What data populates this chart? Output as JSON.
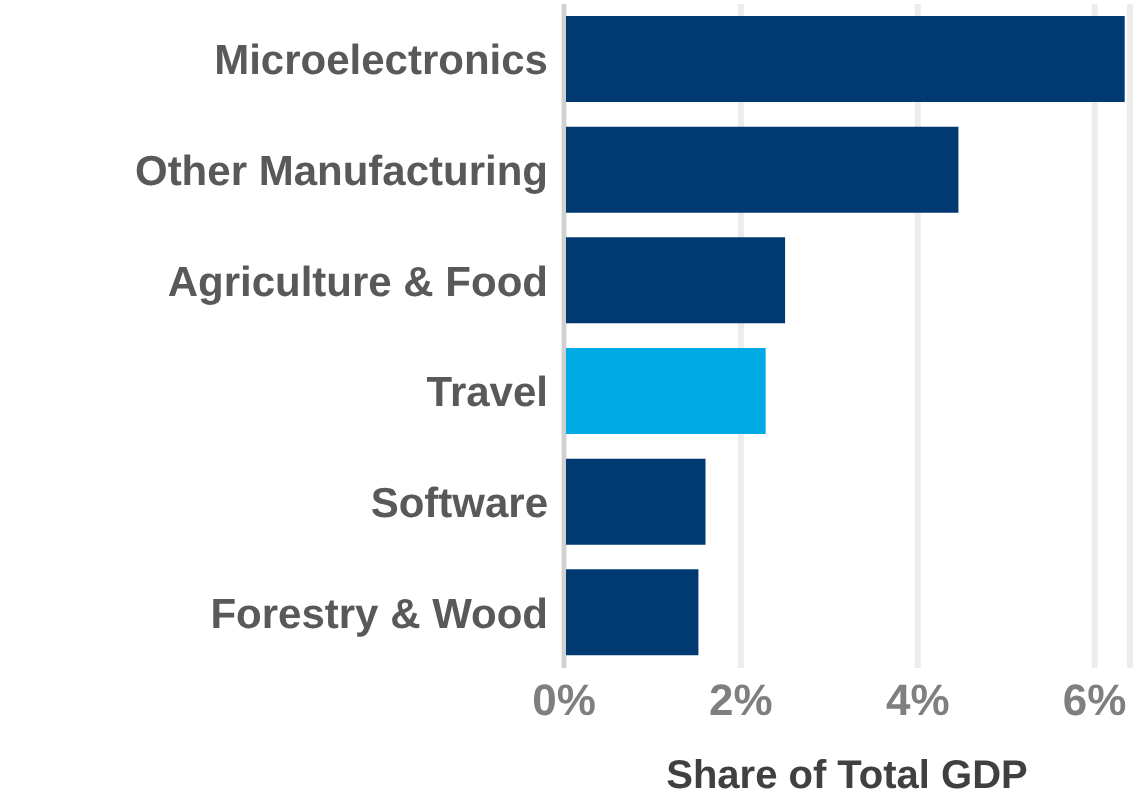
{
  "chart_data": {
    "type": "bar",
    "orientation": "horizontal",
    "xlabel": "Share of Total GDP",
    "categories": [
      "Microelectronics",
      "Other Manufacturing",
      "Agriculture & Food",
      "Travel",
      "Software",
      "Forestry & Wood"
    ],
    "values": [
      6.34,
      4.46,
      2.5,
      2.28,
      1.6,
      1.52
    ],
    "colors": [
      "#003a70",
      "#003a70",
      "#003a70",
      "#00aae4",
      "#003a70",
      "#003a70"
    ],
    "xlim": [
      0,
      6.4
    ],
    "xticks": [
      {
        "value": 0,
        "label": "0%"
      },
      {
        "value": 2,
        "label": "2%"
      },
      {
        "value": 4,
        "label": "4%"
      },
      {
        "value": 6,
        "label": "6%"
      }
    ],
    "grid": "x",
    "legend": false
  }
}
